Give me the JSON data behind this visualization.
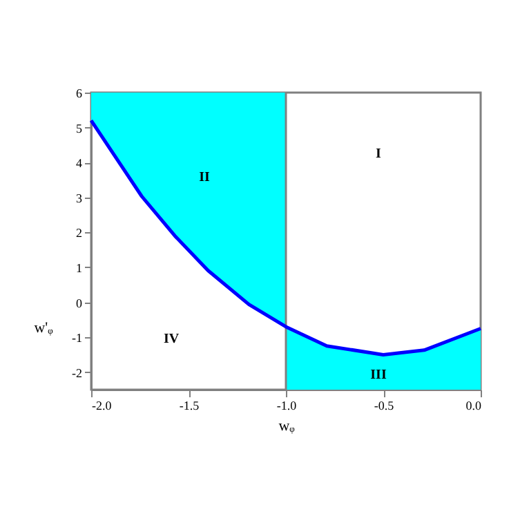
{
  "chart_data": {
    "type": "line",
    "xlabel": "wᵩ",
    "ylabel": "w'ᵩ",
    "xlim": [
      -2,
      0
    ],
    "ylim": [
      -2.5,
      6
    ],
    "xticks": [
      {
        "value": -2,
        "label": "-2.0"
      },
      {
        "value": -1.5,
        "label": "-1.5"
      },
      {
        "value": -1,
        "label": "-1.0"
      },
      {
        "value": -0.5,
        "label": "-0.5"
      },
      {
        "value": 0,
        "label": "0.0"
      }
    ],
    "yticks": [
      -2,
      -1,
      0,
      1,
      2,
      3,
      4,
      5,
      6
    ],
    "grid": false,
    "line_style": "solid",
    "marker": "none",
    "series": [
      {
        "color": "#0000ff",
        "x": [
          -2,
          -1.74,
          -1.57,
          -1.4,
          -1.19,
          -1,
          -1,
          -0.79,
          -0.5,
          -0.29,
          0
        ],
        "values": [
          5.2,
          3.03,
          1.9,
          0.91,
          -0.06,
          -0.7,
          -0.7,
          -1.25,
          -1.5,
          -1.37,
          -0.75
        ],
        "lower": [
          5.2,
          3.03,
          1.9,
          0.91,
          -0.06,
          -0.7,
          -2.5,
          -2.5,
          -2.5,
          -2.5,
          -2.5
        ],
        "upper": [
          6,
          6,
          6,
          6,
          6,
          6,
          -0.7,
          -1.25,
          -1.5,
          -1.37,
          -0.75
        ]
      }
    ],
    "ref_lines": [
      {
        "axis": "x",
        "value": -1,
        "color": "#808080",
        "line_style": "solid"
      }
    ],
    "annotations": [
      "I",
      "II",
      "III",
      "IV"
    ]
  }
}
